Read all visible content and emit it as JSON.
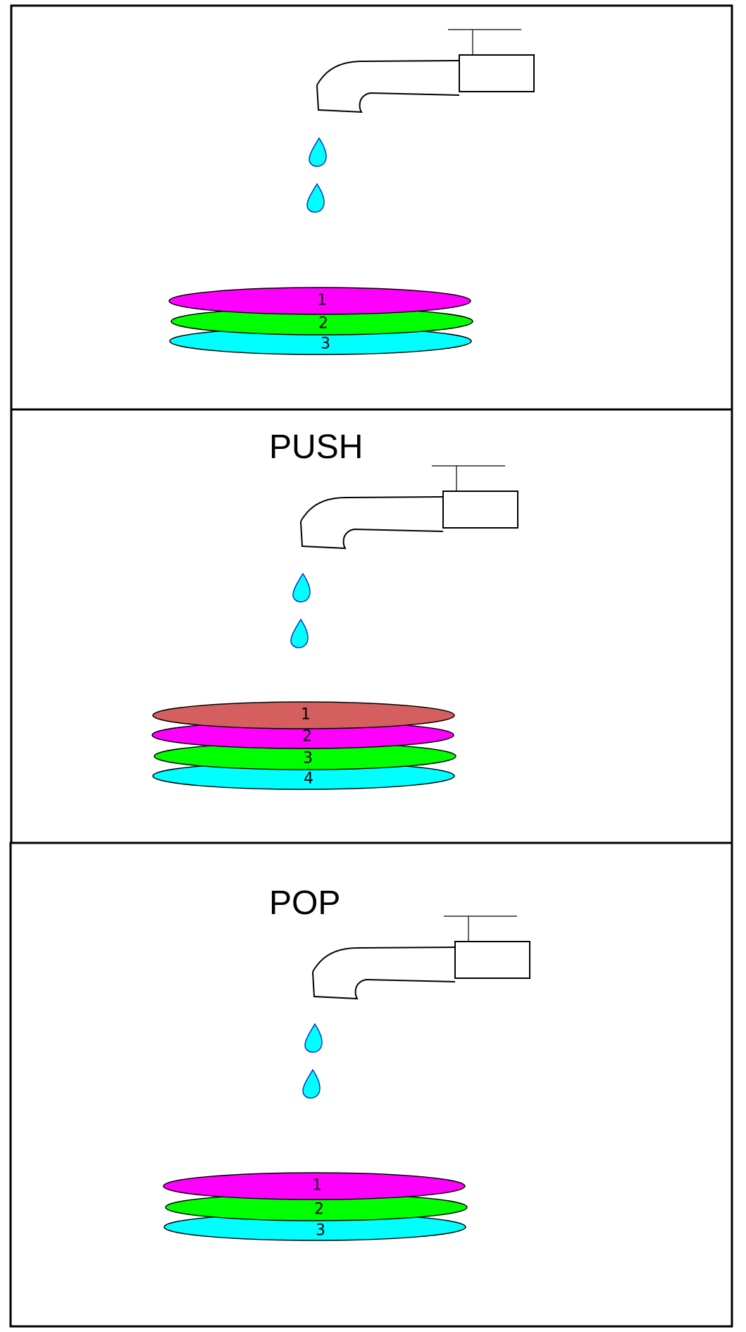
{
  "colors": {
    "magenta": "#ff00ff",
    "green": "#00ff00",
    "cyan": "#00ffff",
    "red": "#d55f5f",
    "drop_outline": "#0033cc"
  },
  "panels": [
    {
      "title": "",
      "plates": [
        {
          "label": "1",
          "color": "#ff00ff"
        },
        {
          "label": "2",
          "color": "#00ff00"
        },
        {
          "label": "3",
          "color": "#00ffff"
        }
      ]
    },
    {
      "title": "PUSH",
      "plates": [
        {
          "label": "1",
          "color": "#d55f5f"
        },
        {
          "label": "2",
          "color": "#ff00ff"
        },
        {
          "label": "3",
          "color": "#00ff00"
        },
        {
          "label": "4",
          "color": "#00ffff"
        }
      ]
    },
    {
      "title": "POP",
      "plates": [
        {
          "label": "1",
          "color": "#ff00ff"
        },
        {
          "label": "2",
          "color": "#00ff00"
        },
        {
          "label": "3",
          "color": "#00ffff"
        }
      ]
    }
  ]
}
